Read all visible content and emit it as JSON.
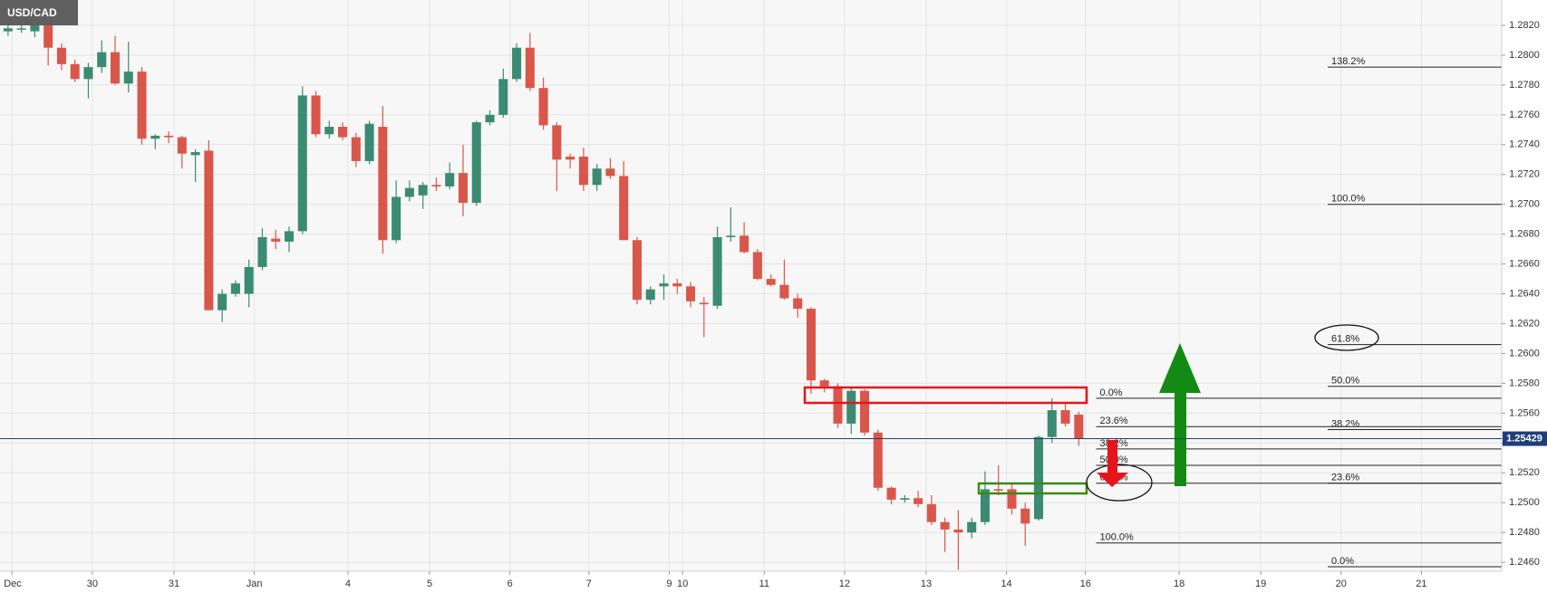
{
  "chart_data": {
    "type": "candlestick",
    "symbol": "USD/CAD",
    "up_color": "#3b8b72",
    "down_color": "#d9574a",
    "x": [
      0,
      1,
      2,
      3,
      4,
      5,
      6,
      7,
      8,
      9,
      10,
      11,
      12,
      13,
      14,
      15,
      16,
      17,
      18,
      19,
      20,
      21,
      22,
      23,
      24,
      25,
      26,
      27,
      28,
      29,
      30,
      31,
      32,
      33,
      34,
      35,
      36,
      37,
      38,
      39,
      40,
      41,
      42,
      43,
      44,
      45,
      46,
      47,
      48,
      49,
      50,
      51,
      52,
      53,
      54,
      55,
      56,
      57,
      58,
      59,
      60,
      61,
      62,
      63,
      64,
      65,
      66,
      67,
      68,
      69,
      70,
      71,
      72,
      73,
      74,
      75,
      76,
      77,
      78,
      79,
      80
    ],
    "open": [
      1.2816,
      1.2818,
      1.2816,
      1.2825,
      1.2805,
      1.2794,
      1.2784,
      1.2792,
      1.2802,
      1.2781,
      1.2789,
      1.2744,
      1.2746,
      1.2745,
      1.2733,
      1.2736,
      1.2629,
      1.264,
      1.264,
      1.2658,
      1.2677,
      1.2675,
      1.2682,
      1.2773,
      1.2747,
      1.2752,
      1.2745,
      1.2729,
      1.2752,
      1.2676,
      1.2705,
      1.2706,
      1.2713,
      1.2712,
      1.2721,
      1.2701,
      1.2755,
      1.276,
      1.2784,
      1.2805,
      1.2778,
      1.2753,
      1.2732,
      1.2732,
      1.2713,
      1.2724,
      1.2719,
      1.2676,
      1.2636,
      1.2645,
      1.2647,
      1.2645,
      1.2634,
      1.2632,
      1.2678,
      1.2679,
      1.2668,
      1.265,
      1.2646,
      1.2637,
      1.263,
      1.2582,
      1.2578,
      1.2553,
      1.2575,
      1.2547,
      1.251,
      1.2502,
      1.2503,
      1.2499,
      1.2487,
      1.2482,
      1.248,
      1.2487,
      1.2509,
      1.2509,
      1.2496,
      1.2489,
      1.2544,
      1.2562,
      1.2559
    ],
    "high": [
      1.282,
      1.2821,
      1.2824,
      1.2831,
      1.2808,
      1.2797,
      1.2795,
      1.281,
      1.2813,
      1.2809,
      1.2792,
      1.2747,
      1.2749,
      1.2746,
      1.2737,
      1.2743,
      1.2643,
      1.2649,
      1.2663,
      1.2684,
      1.2683,
      1.2685,
      1.2779,
      1.2776,
      1.2756,
      1.2755,
      1.2748,
      1.2756,
      1.2766,
      1.2716,
      1.2716,
      1.2715,
      1.2718,
      1.2728,
      1.274,
      1.2756,
      1.2763,
      1.2791,
      1.2808,
      1.2815,
      1.2785,
      1.2755,
      1.2734,
      1.2738,
      1.2727,
      1.2731,
      1.2729,
      1.2678,
      1.2645,
      1.2653,
      1.265,
      1.2648,
      1.2638,
      1.2685,
      1.2698,
      1.2688,
      1.267,
      1.2653,
      1.2663,
      1.264,
      1.2631,
      1.2583,
      1.258,
      1.2577,
      1.2576,
      1.2549,
      1.2511,
      1.2505,
      1.2508,
      1.2505,
      1.249,
      1.2495,
      1.249,
      1.2521,
      1.2525,
      1.2512,
      1.25,
      1.2545,
      1.257,
      1.2566,
      1.2561
    ],
    "low": [
      1.2813,
      1.2815,
      1.2812,
      1.2793,
      1.279,
      1.2782,
      1.2771,
      1.2788,
      1.278,
      1.2775,
      1.274,
      1.2737,
      1.2741,
      1.2724,
      1.2715,
      1.2629,
      1.2621,
      1.2638,
      1.2631,
      1.2656,
      1.267,
      1.2668,
      1.268,
      1.2745,
      1.2744,
      1.2743,
      1.2725,
      1.2727,
      1.2667,
      1.2674,
      1.2702,
      1.2697,
      1.2709,
      1.271,
      1.2692,
      1.2699,
      1.2753,
      1.2758,
      1.2782,
      1.2776,
      1.275,
      1.2709,
      1.2724,
      1.2709,
      1.2709,
      1.2717,
      1.2676,
      1.2633,
      1.2633,
      1.2636,
      1.264,
      1.2631,
      1.2611,
      1.263,
      1.2675,
      1.2667,
      1.2649,
      1.2645,
      1.2636,
      1.2624,
      1.2573,
      1.2574,
      1.255,
      1.2546,
      1.2545,
      1.2508,
      1.2499,
      1.25,
      1.2497,
      1.2485,
      1.2467,
      1.2455,
      1.2476,
      1.2485,
      1.2505,
      1.2492,
      1.2471,
      1.2488,
      1.254,
      1.2551,
      1.2538
    ],
    "close": [
      1.2818,
      1.2818,
      1.282,
      1.2805,
      1.2794,
      1.2784,
      1.2792,
      1.2802,
      1.2781,
      1.2789,
      1.2744,
      1.2746,
      1.2745,
      1.2734,
      1.2735,
      1.2629,
      1.264,
      1.2647,
      1.2658,
      1.2678,
      1.2675,
      1.2682,
      1.2773,
      1.2747,
      1.2752,
      1.2745,
      1.2729,
      1.2754,
      1.2676,
      1.2705,
      1.2711,
      1.2713,
      1.2712,
      1.2721,
      1.2701,
      1.2755,
      1.276,
      1.2784,
      1.2805,
      1.2778,
      1.2753,
      1.273,
      1.273,
      1.2713,
      1.2724,
      1.2719,
      1.2676,
      1.2636,
      1.2643,
      1.2647,
      1.2645,
      1.2635,
      1.2633,
      1.2678,
      1.2679,
      1.2668,
      1.265,
      1.2646,
      1.2637,
      1.263,
      1.2582,
      1.2578,
      1.2553,
      1.2575,
      1.2547,
      1.251,
      1.2502,
      1.2503,
      1.2499,
      1.2487,
      1.2482,
      1.248,
      1.2487,
      1.2509,
      1.2508,
      1.2496,
      1.2486,
      1.2544,
      1.2562,
      1.2553,
      1.2543
    ],
    "xlim": [
      -0.6,
      111.6
    ],
    "xticks": [
      {
        "value": 0.3,
        "label": "Dec"
      },
      {
        "value": 6.3,
        "label": "30"
      },
      {
        "value": 12.4,
        "label": "31"
      },
      {
        "value": 18.4,
        "label": "Jan"
      },
      {
        "value": 25.4,
        "label": "4"
      },
      {
        "value": 31.5,
        "label": "5"
      },
      {
        "value": 37.5,
        "label": "6"
      },
      {
        "value": 43.4,
        "label": "7"
      },
      {
        "value": 49.4,
        "label": "9"
      },
      {
        "value": 50.4,
        "label": "10"
      },
      {
        "value": 56.5,
        "label": "11"
      },
      {
        "value": 62.5,
        "label": "12"
      },
      {
        "value": 68.6,
        "label": "13"
      },
      {
        "value": 74.6,
        "label": "14"
      },
      {
        "value": 80.5,
        "label": "16"
      },
      {
        "value": 87.5,
        "label": "18"
      },
      {
        "value": 93.6,
        "label": "19"
      },
      {
        "value": 99.6,
        "label": "20"
      },
      {
        "value": 105.6,
        "label": "21"
      }
    ],
    "ylim": [
      1.2454,
      1.2837
    ],
    "yticks": [
      {
        "value": 1.246,
        "label": "1.2460"
      },
      {
        "value": 1.248,
        "label": "1.2480"
      },
      {
        "value": 1.25,
        "label": "1.2500"
      },
      {
        "value": 1.252,
        "label": "1.2520"
      },
      {
        "value": 1.254,
        "label": "1.2540"
      },
      {
        "value": 1.256,
        "label": "1.2560"
      },
      {
        "value": 1.258,
        "label": "1.2580"
      },
      {
        "value": 1.26,
        "label": "1.2600"
      },
      {
        "value": 1.262,
        "label": "1.2620"
      },
      {
        "value": 1.264,
        "label": "1.2640"
      },
      {
        "value": 1.266,
        "label": "1.2660"
      },
      {
        "value": 1.268,
        "label": "1.2680"
      },
      {
        "value": 1.27,
        "label": "1.2700"
      },
      {
        "value": 1.272,
        "label": "1.2720"
      },
      {
        "value": 1.274,
        "label": "1.2740"
      },
      {
        "value": 1.276,
        "label": "1.2760"
      },
      {
        "value": 1.278,
        "label": "1.2780"
      },
      {
        "value": 1.28,
        "label": "1.2800"
      },
      {
        "value": 1.282,
        "label": "1.2820"
      }
    ],
    "grid": true,
    "last_price": {
      "value": 1.25429,
      "label": "1.25429"
    },
    "fib_sets": [
      {
        "x_start": 81.3,
        "levels": [
          {
            "label": "0.0%",
            "price": 1.257
          },
          {
            "label": "23.6%",
            "price": 1.2551
          },
          {
            "label": "38.2%",
            "price": 1.2536
          },
          {
            "label": "50.0%",
            "price": 1.2525
          },
          {
            "label": "61.8%",
            "price": 1.2513
          },
          {
            "label": "100.0%",
            "price": 1.2473
          }
        ]
      },
      {
        "x_start": 98.6,
        "levels": [
          {
            "label": "138.2%",
            "price": 1.2792
          },
          {
            "label": "100.0%",
            "price": 1.27
          },
          {
            "label": "61.8%",
            "price": 1.2606
          },
          {
            "label": "50.0%",
            "price": 1.2578
          },
          {
            "label": "38.2%",
            "price": 1.2549
          },
          {
            "label": "23.6%",
            "price": 1.2513
          },
          {
            "label": "0.0%",
            "price": 1.2457
          }
        ]
      }
    ]
  }
}
